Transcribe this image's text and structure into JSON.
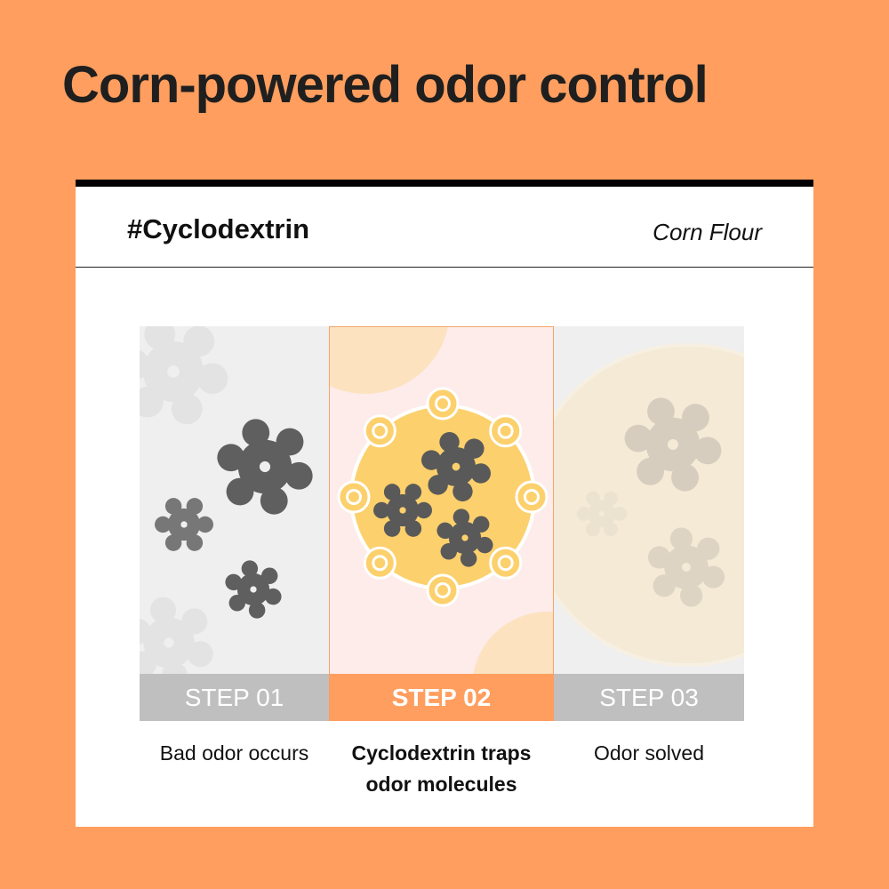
{
  "title": "Corn-powered odor control",
  "card": {
    "tag": "#Cyclodextrin",
    "subtitle": "Corn Flour"
  },
  "steps": [
    {
      "label": "STEP 01",
      "caption": "Bad odor occurs",
      "active": false,
      "icon": "odor-molecules-icon"
    },
    {
      "label": "STEP 02",
      "caption_line1": "Cyclodextrin traps",
      "caption_line2": "odor molecules",
      "active": true,
      "icon": "cyclodextrin-trap-icon"
    },
    {
      "label": "STEP 03",
      "caption": "Odor solved",
      "active": false,
      "icon": "faded-molecules-icon"
    }
  ],
  "colors": {
    "background": "#FF9E5E",
    "accent": "#FF9E5E",
    "inactive_step": "#BFBFBF",
    "molecule": "#595959",
    "cyclodextrin": "#FCD06C"
  }
}
